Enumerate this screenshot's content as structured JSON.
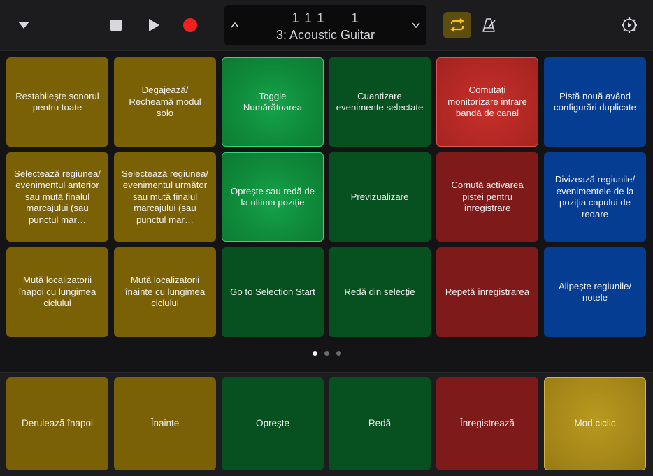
{
  "toolbar": {
    "menu_icon": "chevron-down-icon",
    "stop_icon": "stop-icon",
    "play_icon": "play-icon",
    "record_icon": "record-icon",
    "cycle_icon": "cycle-icon",
    "metronome_icon": "metronome-icon",
    "settings_icon": "gear-icon",
    "colors": {
      "record": "#f0201f",
      "cycle_active": "#f5c518",
      "icon": "#d8d8dc"
    }
  },
  "lcd": {
    "position": "1 1 1      1",
    "track_name": "3: Acoustic Guitar"
  },
  "pads": [
    {
      "label": "Restabilește sonorul pentru toate",
      "color": "olive"
    },
    {
      "label": "Degajează/ Recheamă modul solo",
      "color": "olive"
    },
    {
      "label": "Toggle Numărătoarea",
      "color": "lgreen"
    },
    {
      "label": "Cuantizare evenimente selectate",
      "color": "dgreen"
    },
    {
      "label": "Comutați monitorizare intrare bandă de canal",
      "color": "lred"
    },
    {
      "label": "Pistă nouă având configurări duplicate",
      "color": "blue"
    },
    {
      "label": "Selectează regiunea/ evenimentul anterior sau mută finalul marcajului (sau punctul mar…",
      "color": "olive"
    },
    {
      "label": "Selectează regiunea/ evenimentul următor sau mută finalul marcajului (sau punctul mar…",
      "color": "olive"
    },
    {
      "label": "Oprește sau redă de la ultima poziție",
      "color": "lgreen"
    },
    {
      "label": "Previzualizare",
      "color": "dgreen"
    },
    {
      "label": "Comută activarea pistei pentru înregistrare",
      "color": "red"
    },
    {
      "label": "Divizează regiunile/ evenimentele de la poziția capului de redare",
      "color": "blue"
    },
    {
      "label": "Mută localizatorii înapoi cu lungimea ciclului",
      "color": "olive"
    },
    {
      "label": "Mută localizatorii înainte cu lungimea ciclului",
      "color": "olive"
    },
    {
      "label": "Go to Selection Start",
      "color": "dgreen"
    },
    {
      "label": "Redă din selecție",
      "color": "dgreen"
    },
    {
      "label": "Repetă înregistrarea",
      "color": "red"
    },
    {
      "label": "Alipește regiunile/ notele",
      "color": "blue"
    }
  ],
  "page_dots": {
    "count": 3,
    "active": 0
  },
  "transport": [
    {
      "label": "Derulează înapoi",
      "color": "olive"
    },
    {
      "label": "Înainte",
      "color": "olive"
    },
    {
      "label": "Oprește",
      "color": "dgreen"
    },
    {
      "label": "Redă",
      "color": "dgreen"
    },
    {
      "label": "Înregistrează",
      "color": "red"
    },
    {
      "label": "Mod ciclic",
      "color": "gold"
    }
  ]
}
